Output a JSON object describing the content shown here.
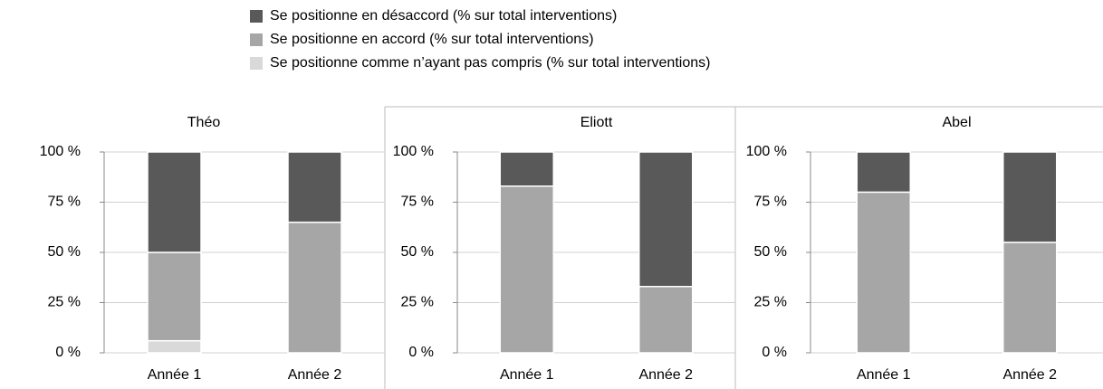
{
  "chart_data": [
    {
      "type": "bar",
      "stacked": true,
      "title": "Théo",
      "categories": [
        "Année 1",
        "Année 2"
      ],
      "series": [
        {
          "name": "Se positionne comme n’ayant pas compris (% sur total interventions)",
          "color": "#d9d9d9",
          "values": [
            6,
            0
          ]
        },
        {
          "name": "Se positionne en accord (% sur total interventions)",
          "color": "#a6a6a6",
          "values": [
            44,
            65
          ]
        },
        {
          "name": "Se positionne en désaccord (% sur total interventions)",
          "color": "#595959",
          "values": [
            50,
            35
          ]
        }
      ],
      "ylim": [
        0,
        100
      ],
      "yticks": [
        {
          "value": 0,
          "label": "0 %"
        },
        {
          "value": 25,
          "label": "25 %"
        },
        {
          "value": 50,
          "label": "50 %"
        },
        {
          "value": 75,
          "label": "75 %"
        },
        {
          "value": 100,
          "label": "100 %"
        }
      ],
      "grid": true
    },
    {
      "type": "bar",
      "stacked": true,
      "title": "Eliott",
      "categories": [
        "Année 1",
        "Année 2"
      ],
      "series": [
        {
          "name": "Se positionne comme n’ayant pas compris (% sur total interventions)",
          "color": "#d9d9d9",
          "values": [
            0,
            0
          ]
        },
        {
          "name": "Se positionne en accord (% sur total interventions)",
          "color": "#a6a6a6",
          "values": [
            83,
            33
          ]
        },
        {
          "name": "Se positionne en désaccord (% sur total interventions)",
          "color": "#595959",
          "values": [
            17,
            67
          ]
        }
      ],
      "ylim": [
        0,
        100
      ],
      "yticks": [
        {
          "value": 0,
          "label": "0 %"
        },
        {
          "value": 25,
          "label": "25 %"
        },
        {
          "value": 50,
          "label": "50 %"
        },
        {
          "value": 75,
          "label": "75 %"
        },
        {
          "value": 100,
          "label": "100 %"
        }
      ],
      "grid": true
    },
    {
      "type": "bar",
      "stacked": true,
      "title": "Abel",
      "categories": [
        "Année 1",
        "Année 2"
      ],
      "series": [
        {
          "name": "Se positionne comme n’ayant pas compris (% sur total interventions)",
          "color": "#d9d9d9",
          "values": [
            0,
            0
          ]
        },
        {
          "name": "Se positionne en accord (% sur total interventions)",
          "color": "#a6a6a6",
          "values": [
            80,
            55
          ]
        },
        {
          "name": "Se positionne en désaccord (% sur total interventions)",
          "color": "#595959",
          "values": [
            20,
            45
          ]
        }
      ],
      "ylim": [
        0,
        100
      ],
      "yticks": [
        {
          "value": 0,
          "label": "0 %"
        },
        {
          "value": 25,
          "label": "25 %"
        },
        {
          "value": 50,
          "label": "50 %"
        },
        {
          "value": 75,
          "label": "75 %"
        },
        {
          "value": 100,
          "label": "100 %"
        }
      ],
      "grid": true
    }
  ]
}
